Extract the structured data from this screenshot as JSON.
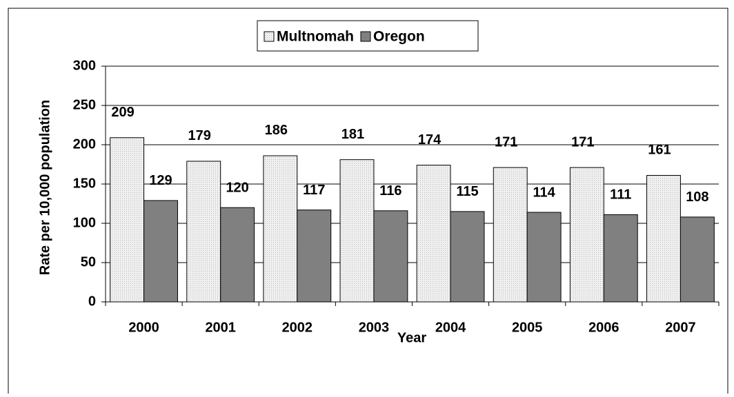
{
  "chart_data": {
    "type": "bar",
    "categories": [
      "2000",
      "2001",
      "2002",
      "2003",
      "2004",
      "2005",
      "2006",
      "2007"
    ],
    "series": [
      {
        "name": "Multnomah",
        "color": "#e4e4e4",
        "values": [
          209,
          179,
          186,
          181,
          174,
          171,
          171,
          161
        ]
      },
      {
        "name": "Oregon",
        "color": "#808080",
        "values": [
          129,
          120,
          117,
          116,
          115,
          114,
          111,
          108
        ]
      }
    ],
    "x_label": "Year",
    "y_label": "Rate per 10,000 population",
    "ylim": [
      0,
      300
    ],
    "yticks": [
      0,
      50,
      100,
      150,
      200,
      250,
      300
    ],
    "grid": true,
    "legend": "top"
  }
}
